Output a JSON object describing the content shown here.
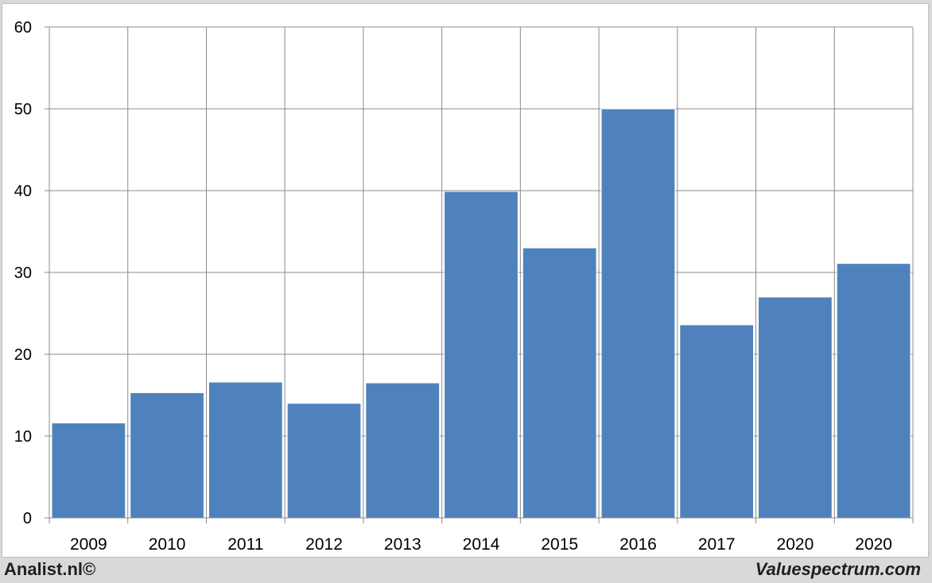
{
  "chart_data": {
    "type": "bar",
    "categories": [
      "2009",
      "2010",
      "2011",
      "2012",
      "2013",
      "2014",
      "2015",
      "2016",
      "2017",
      "2020",
      "2020"
    ],
    "values": [
      11.6,
      15.3,
      16.6,
      14.0,
      16.5,
      39.9,
      33.0,
      50.0,
      23.6,
      27.0,
      31.1
    ],
    "title": "",
    "xlabel": "",
    "ylabel": "",
    "ylim": [
      0,
      60
    ],
    "yticks": [
      0,
      10,
      20,
      30,
      40,
      50,
      60
    ],
    "grid": true,
    "bar_color": "#4f81bd"
  },
  "footer": {
    "left": "Analist.nl©",
    "right": "Valuespectrum.com"
  }
}
